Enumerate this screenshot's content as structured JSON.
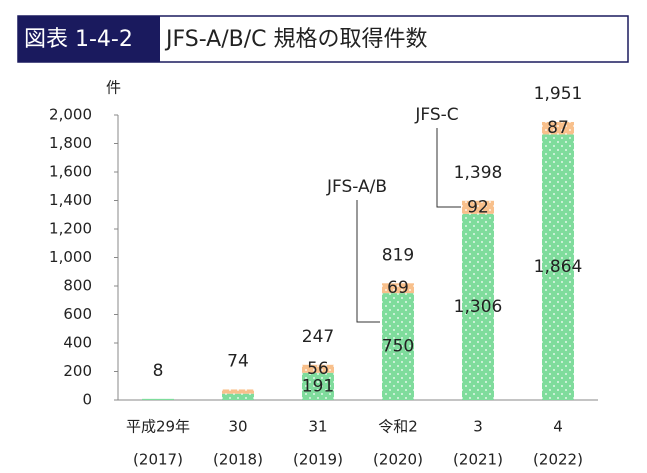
{
  "chart_data": {
    "type": "stacked_bar",
    "title_tag": "図表 1-4-2",
    "title": "JFS-A/B/C 規格の取得件数",
    "y_label": "件",
    "categories": [
      "平成29年",
      "30",
      "31",
      "令和2",
      "3",
      "4"
    ],
    "category_sublabels": [
      "(2017)",
      "(2018)",
      "(2019)",
      "(2020)",
      "(2021)",
      "(2022)"
    ],
    "series": [
      {
        "name": "JFS-A/B",
        "color": "#7fdc9c",
        "values": [
          8,
          44,
          191,
          750,
          1306,
          1864
        ],
        "value_labels": [
          null,
          null,
          "191",
          "750",
          "1,306",
          "1,864"
        ]
      },
      {
        "name": "JFS-C",
        "color": "#f8c08c",
        "values": [
          0,
          30,
          56,
          69,
          92,
          87
        ],
        "value_labels": [
          null,
          null,
          "56",
          "69",
          "92",
          "87"
        ]
      }
    ],
    "totals": [
      8,
      74,
      247,
      819,
      1398,
      1951
    ],
    "total_labels": [
      "8",
      "74",
      "247",
      "819",
      "1,398",
      "1,951"
    ],
    "ylim": [
      0,
      2000
    ],
    "yticks": [
      0,
      200,
      400,
      600,
      800,
      {
        "value": 1000,
        "label": "1,000"
      },
      {
        "value": 1200,
        "label": "1,200"
      },
      {
        "value": 1400,
        "label": "1,400"
      },
      {
        "value": 1600,
        "label": "1,600"
      },
      {
        "value": 1800,
        "label": "1,800"
      },
      {
        "value": 2000,
        "label": "2,000"
      }
    ]
  }
}
